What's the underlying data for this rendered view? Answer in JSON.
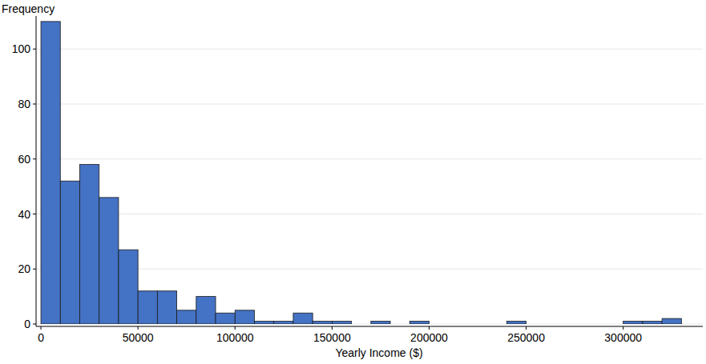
{
  "chart_data": {
    "type": "histogram",
    "x_label": "Yearly Income ($)",
    "y_label": "Frequency",
    "bins": [
      0,
      10000,
      20000,
      30000,
      40000,
      50000,
      60000,
      70000,
      80000,
      90000,
      100000,
      110000,
      120000,
      130000,
      140000,
      150000,
      160000,
      170000,
      180000,
      190000,
      200000,
      210000,
      220000,
      230000,
      240000,
      250000,
      260000,
      270000,
      280000,
      290000,
      300000,
      310000,
      320000,
      330000
    ],
    "counts": [
      110,
      52,
      58,
      46,
      27,
      12,
      12,
      5,
      10,
      4,
      5,
      1,
      1,
      4,
      1,
      1,
      0,
      1,
      0,
      1,
      0,
      0,
      0,
      0,
      1,
      0,
      0,
      0,
      0,
      0,
      1,
      1,
      2
    ],
    "color": "#4472c4",
    "xlim": [
      -2500,
      341000
    ],
    "xticks": [
      0,
      50000,
      100000,
      150000,
      200000,
      250000,
      300000
    ],
    "ylim": [
      0,
      112
    ],
    "yticks": [
      0,
      20,
      40,
      60,
      80,
      100
    ],
    "grid": true
  }
}
